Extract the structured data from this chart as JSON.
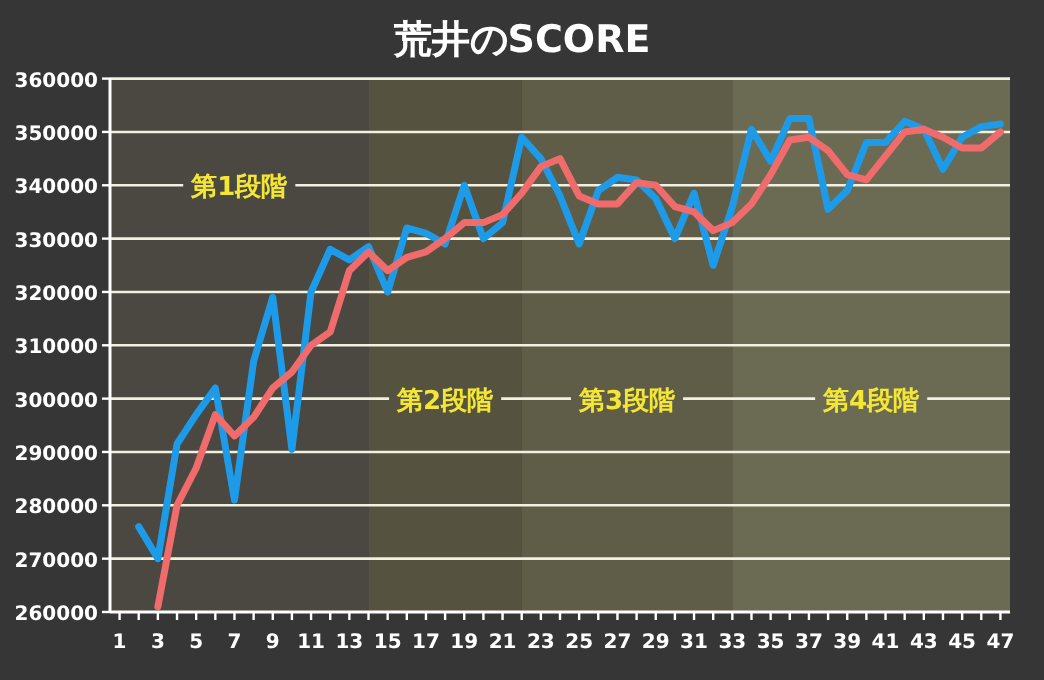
{
  "chart_data": {
    "type": "line",
    "title": "荒井のSCORE",
    "x": [
      2,
      3,
      4,
      5,
      6,
      7,
      8,
      9,
      10,
      11,
      12,
      13,
      14,
      15,
      16,
      17,
      18,
      19,
      20,
      21,
      22,
      23,
      24,
      25,
      26,
      27,
      28,
      29,
      30,
      31,
      32,
      33,
      34,
      35,
      36,
      37,
      38,
      39,
      40,
      41,
      42,
      43,
      44,
      45,
      46,
      47
    ],
    "series": [
      {
        "color": "#1e9be8",
        "values": [
          276000,
          270000,
          291500,
          297000,
          302000,
          281000,
          307000,
          319000,
          290500,
          320000,
          328000,
          326000,
          328500,
          320000,
          332000,
          331000,
          329000,
          340000,
          330000,
          333000,
          349000,
          345000,
          338000,
          329000,
          339000,
          341500,
          341000,
          337500,
          330000,
          338500,
          325000,
          336000,
          350500,
          344500,
          352500,
          352500,
          335500,
          339000,
          348000,
          348000,
          352000,
          350500,
          343000,
          349000,
          351000,
          351500
        ]
      },
      {
        "color": "#f06b6b",
        "values": [
          null,
          261000,
          280000,
          287000,
          297000,
          293000,
          296500,
          302000,
          305000,
          310000,
          312500,
          324000,
          327500,
          324000,
          326500,
          327500,
          330000,
          333000,
          333000,
          334500,
          338500,
          343500,
          345000,
          338000,
          336500,
          336500,
          340500,
          340000,
          336000,
          335000,
          331500,
          333000,
          336500,
          342000,
          348500,
          349000,
          346500,
          342000,
          341000,
          345500,
          350000,
          350500,
          349000,
          347000,
          347000,
          350000
        ]
      }
    ],
    "xlim": [
      0.5,
      47.5
    ],
    "ylim": [
      260000,
      360000
    ],
    "yticks": [
      260000,
      270000,
      280000,
      290000,
      300000,
      310000,
      320000,
      330000,
      340000,
      350000,
      360000
    ],
    "xticks": [
      1,
      {
        "value": 2,
        "label": null
      },
      3,
      {
        "value": 4,
        "label": null
      },
      5,
      {
        "value": 6,
        "label": null
      },
      7,
      {
        "value": 8,
        "label": null
      },
      9,
      {
        "value": 10,
        "label": null
      },
      11,
      {
        "value": 12,
        "label": null
      },
      13,
      {
        "value": 14,
        "label": null
      },
      15,
      {
        "value": 16,
        "label": null
      },
      17,
      {
        "value": 18,
        "label": null
      },
      19,
      {
        "value": 20,
        "label": null
      },
      21,
      {
        "value": 22,
        "label": null
      },
      23,
      {
        "value": 24,
        "label": null
      },
      25,
      {
        "value": 26,
        "label": null
      },
      27,
      {
        "value": 28,
        "label": null
      },
      29,
      {
        "value": 30,
        "label": null
      },
      31,
      {
        "value": 32,
        "label": null
      },
      33,
      {
        "value": 34,
        "label": null
      },
      35,
      {
        "value": 36,
        "label": null
      },
      37,
      {
        "value": 38,
        "label": null
      },
      39,
      {
        "value": 40,
        "label": null
      },
      41,
      {
        "value": 42,
        "label": null
      },
      43,
      {
        "value": 44,
        "label": null
      },
      45,
      {
        "value": 46,
        "label": null
      },
      47
    ],
    "bands": [
      {
        "axis": "x",
        "from": 0.5,
        "to": 14,
        "label": "第1段階",
        "color": "#4a4840"
      },
      {
        "axis": "x",
        "from": 14,
        "to": 22,
        "label": "第2段階",
        "color": "#55533f"
      },
      {
        "axis": "x",
        "from": 22,
        "to": 33,
        "label": "第3段階",
        "color": "#5f5d48"
      },
      {
        "axis": "x",
        "from": 33,
        "to": 47.5,
        "label": "第4段階",
        "color": "#6b6a52"
      }
    ],
    "grid": "y",
    "marker": "none",
    "line_style": "solid"
  }
}
